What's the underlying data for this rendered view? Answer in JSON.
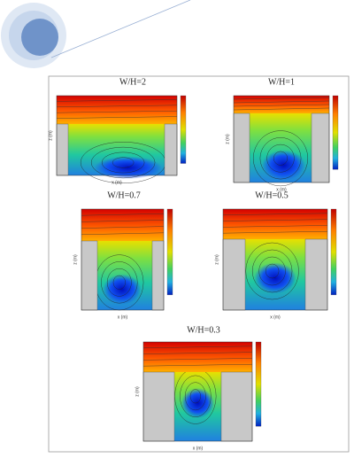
{
  "figures": [
    {
      "title": "W/H=2",
      "x_label": "x (m)",
      "y_label": "z (m)"
    },
    {
      "title": "W/H=1",
      "x_label": "x (m)",
      "y_label": "z (m)"
    },
    {
      "title": "W/H=0.7",
      "x_label": "x (m)",
      "y_label": "z (m)"
    },
    {
      "title": "W/H=0.5",
      "x_label": "x (m)",
      "y_label": "z (m)"
    },
    {
      "title": "W/H=0.3",
      "x_label": "x (m)",
      "y_label": "z (m)"
    }
  ]
}
